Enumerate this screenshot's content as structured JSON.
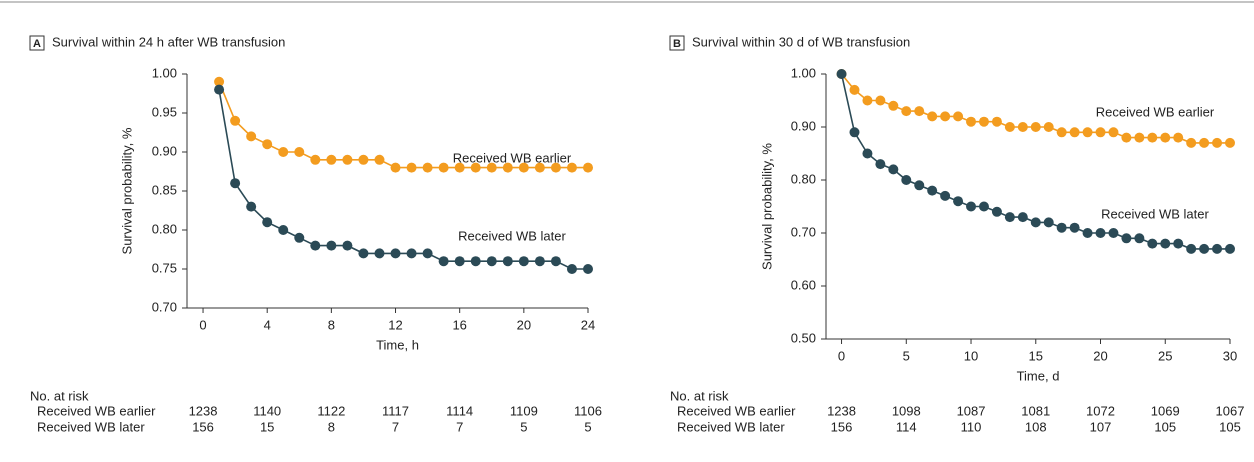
{
  "chart_data": [
    {
      "type": "line",
      "panel": "A",
      "title": "Survival within 24 h after WB transfusion",
      "x_label": "Time, h",
      "y_label": "Survival probability, %",
      "x": [
        1,
        2,
        3,
        4,
        5,
        6,
        7,
        8,
        9,
        10,
        11,
        12,
        13,
        14,
        15,
        16,
        17,
        18,
        19,
        20,
        21,
        22,
        23,
        24
      ],
      "series": [
        {
          "name": "Received WB earlier",
          "color": "#f39c1f",
          "values": [
            0.99,
            0.94,
            0.92,
            0.91,
            0.9,
            0.9,
            0.89,
            0.89,
            0.89,
            0.89,
            0.89,
            0.88,
            0.88,
            0.88,
            0.88,
            0.88,
            0.88,
            0.88,
            0.88,
            0.88,
            0.88,
            0.88,
            0.88,
            0.88
          ]
        },
        {
          "name": "Received WB later",
          "color": "#2b4a56",
          "values": [
            0.98,
            0.86,
            0.83,
            0.81,
            0.8,
            0.79,
            0.78,
            0.78,
            0.78,
            0.77,
            0.77,
            0.77,
            0.77,
            0.77,
            0.76,
            0.76,
            0.76,
            0.76,
            0.76,
            0.76,
            0.76,
            0.76,
            0.75,
            0.75
          ]
        }
      ],
      "xlim": [
        -1,
        24
      ],
      "xticks": [
        0,
        4,
        8,
        12,
        16,
        20,
        24
      ],
      "ylim": [
        0.7,
        1.0
      ],
      "yticks": [
        {
          "value": 0.7,
          "label": "0.70"
        },
        {
          "value": 0.75,
          "label": "0.75"
        },
        {
          "value": 0.8,
          "label": "0.80"
        },
        {
          "value": 0.85,
          "label": "0.85"
        },
        {
          "value": 0.9,
          "label": "0.90"
        },
        {
          "value": 0.95,
          "label": "0.95"
        },
        {
          "value": 1.0,
          "label": "1.00"
        }
      ],
      "grid": false,
      "risk_table": {
        "title": "No. at risk",
        "rows": [
          {
            "name": "Received WB earlier",
            "values": [
              1238,
              1140,
              1122,
              1117,
              1114,
              1109,
              1106
            ]
          },
          {
            "name": "Received WB later",
            "values": [
              156,
              15,
              8,
              7,
              7,
              5,
              5
            ]
          }
        ]
      }
    },
    {
      "type": "line",
      "panel": "B",
      "title": "Survival within 30 d of WB transfusion",
      "x_label": "Time, d",
      "y_label": "Survival probability, %",
      "x": [
        0,
        1,
        2,
        3,
        4,
        5,
        6,
        7,
        8,
        9,
        10,
        11,
        12,
        13,
        14,
        15,
        16,
        17,
        18,
        19,
        20,
        21,
        22,
        23,
        24,
        25,
        26,
        27,
        28,
        29,
        30
      ],
      "series": [
        {
          "name": "Received WB earlier",
          "color": "#f39c1f",
          "values": [
            1.0,
            0.97,
            0.95,
            0.95,
            0.94,
            0.93,
            0.93,
            0.92,
            0.92,
            0.92,
            0.91,
            0.91,
            0.91,
            0.9,
            0.9,
            0.9,
            0.9,
            0.89,
            0.89,
            0.89,
            0.89,
            0.89,
            0.88,
            0.88,
            0.88,
            0.88,
            0.88,
            0.87,
            0.87,
            0.87,
            0.87
          ]
        },
        {
          "name": "Received WB later",
          "color": "#2b4a56",
          "values": [
            1.0,
            0.89,
            0.85,
            0.83,
            0.82,
            0.8,
            0.79,
            0.78,
            0.77,
            0.76,
            0.75,
            0.75,
            0.74,
            0.73,
            0.73,
            0.72,
            0.72,
            0.71,
            0.71,
            0.7,
            0.7,
            0.7,
            0.69,
            0.69,
            0.68,
            0.68,
            0.68,
            0.67,
            0.67,
            0.67,
            0.67
          ]
        }
      ],
      "xlim": [
        -1.2,
        30
      ],
      "xticks": [
        0,
        5,
        10,
        15,
        20,
        25,
        30
      ],
      "ylim": [
        0.5,
        1.0
      ],
      "yticks": [
        {
          "value": 0.5,
          "label": "0.50"
        },
        {
          "value": 0.6,
          "label": "0.60"
        },
        {
          "value": 0.7,
          "label": "0.70"
        },
        {
          "value": 0.8,
          "label": "0.80"
        },
        {
          "value": 0.9,
          "label": "0.90"
        },
        {
          "value": 1.0,
          "label": "1.00"
        }
      ],
      "grid": false,
      "risk_table": {
        "title": "No. at risk",
        "rows": [
          {
            "name": "Received WB earlier",
            "values": [
              1238,
              1098,
              1087,
              1081,
              1072,
              1069,
              1067
            ]
          },
          {
            "name": "Received WB later",
            "values": [
              156,
              114,
              110,
              108,
              107,
              105,
              105
            ]
          }
        ]
      }
    }
  ]
}
